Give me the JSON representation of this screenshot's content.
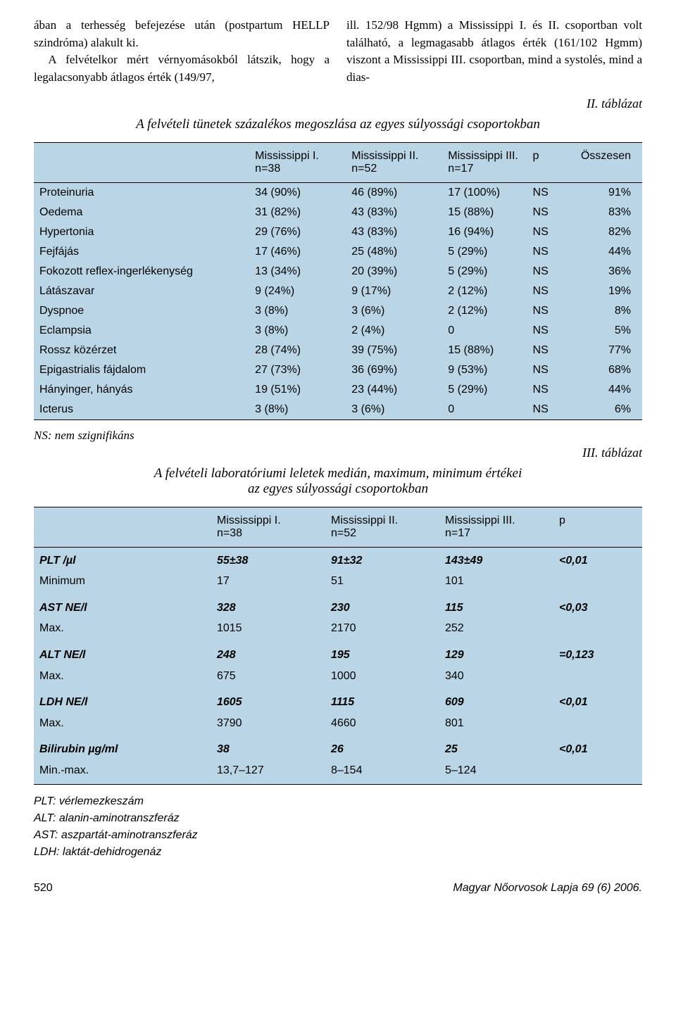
{
  "paragraphs": {
    "col1_a": "ában a terhesség befejezése után (postpartum HELLP szindróma) alakult ki.",
    "col1_b": "A felvételkor mért vérnyomásokból látszik, hogy a legalacsonyabb átlagos érték (149/97,",
    "col2": "ill. 152/98 Hgmm) a Mississippi I. és II. csoportban volt található, a legmagasabb átlagos érték (161/102 Hgmm) viszont a Mississippi III. csoportban, mind a systolés, mind a dias-"
  },
  "table2": {
    "label": "II. táblázat",
    "title": "A felvételi tünetek százalékos megoszlása az egyes súlyossági csoportokban",
    "columns": [
      "",
      "Mississippi I.\nn=38",
      "Mississippi II.\nn=52",
      "Mississippi III.\nn=17",
      "p",
      "Összesen"
    ],
    "rows": [
      [
        "Proteinuria",
        "34 (90%)",
        "46 (89%)",
        "17 (100%)",
        "NS",
        "91%"
      ],
      [
        "Oedema",
        "31 (82%)",
        "43 (83%)",
        "15 (88%)",
        "NS",
        "83%"
      ],
      [
        "Hypertonia",
        "29 (76%)",
        "43 (83%)",
        "16 (94%)",
        "NS",
        "82%"
      ],
      [
        "Fejfájás",
        "17 (46%)",
        "25 (48%)",
        "5 (29%)",
        "NS",
        "44%"
      ],
      [
        "Fokozott reflex-ingerlékenység",
        "13 (34%)",
        "20 (39%)",
        "5 (29%)",
        "NS",
        "36%"
      ],
      [
        "Látászavar",
        "9 (24%)",
        "9 (17%)",
        "2 (12%)",
        "NS",
        "19%"
      ],
      [
        "Dyspnoe",
        "3 (8%)",
        "3 (6%)",
        "2 (12%)",
        "NS",
        "8%"
      ],
      [
        "Eclampsia",
        "3 (8%)",
        "2 (4%)",
        "0",
        "NS",
        "5%"
      ],
      [
        "Rossz közérzet",
        "28 (74%)",
        "39 (75%)",
        "15 (88%)",
        "NS",
        "77%"
      ],
      [
        "Epigastrialis fájdalom",
        "27 (73%)",
        "36 (69%)",
        "9 (53%)",
        "NS",
        "68%"
      ],
      [
        "Hányinger, hányás",
        "19 (51%)",
        "23 (44%)",
        "5 (29%)",
        "NS",
        "44%"
      ],
      [
        "Icterus",
        "3 (8%)",
        "3 (6%)",
        "0",
        "NS",
        "6%"
      ]
    ],
    "note": "NS: nem szignifikáns"
  },
  "table3": {
    "label": "III. táblázat",
    "title_l1": "A felvételi laboratóriumi leletek medián, maximum, minimum értékei",
    "title_l2": "az egyes súlyossági csoportokban",
    "columns": [
      "",
      "Mississippi I.\nn=38",
      "Mississippi II.\nn=52",
      "Mississippi III.\nn=17",
      "p"
    ],
    "rows": [
      {
        "param": "PLT /µl",
        "sub": "Minimum",
        "v1a": "55±38",
        "v1b": "17",
        "v2a": "91±32",
        "v2b": "51",
        "v3a": "143±49",
        "v3b": "101",
        "p": "<0,01"
      },
      {
        "param": "AST NE/l",
        "sub": "Max.",
        "v1a": "328",
        "v1b": "1015",
        "v2a": "230",
        "v2b": "2170",
        "v3a": "115",
        "v3b": "252",
        "p": "<0,03"
      },
      {
        "param": "ALT NE/l",
        "sub": "Max.",
        "v1a": "248",
        "v1b": "675",
        "v2a": "195",
        "v2b": "1000",
        "v3a": "129",
        "v3b": "340",
        "p": "=0,123"
      },
      {
        "param": "LDH NE/l",
        "sub": "Max.",
        "v1a": "1605",
        "v1b": "3790",
        "v2a": "1115",
        "v2b": "4660",
        "v3a": "609",
        "v3b": "801",
        "p": "<0,01"
      },
      {
        "param": "Bilirubin µg/ml",
        "sub": "Min.-max.",
        "v1a": "38",
        "v1b": "13,7–127",
        "v2a": "26",
        "v2b": "8–154",
        "v3a": "25",
        "v3b": "5–124",
        "p": "<0,01"
      }
    ],
    "abbrev": [
      "PLT: vérlemezkeszám",
      "ALT: alanin-aminotranszferáz",
      "AST: aszpartát-aminotranszferáz",
      "LDH: laktát-dehidrogenáz"
    ]
  },
  "footer": {
    "page": "520",
    "journal": "Magyar Nőorvosok Lapja 69 (6) 2006."
  },
  "colors": {
    "table_bg": "#bad6e6",
    "text": "#000000"
  }
}
